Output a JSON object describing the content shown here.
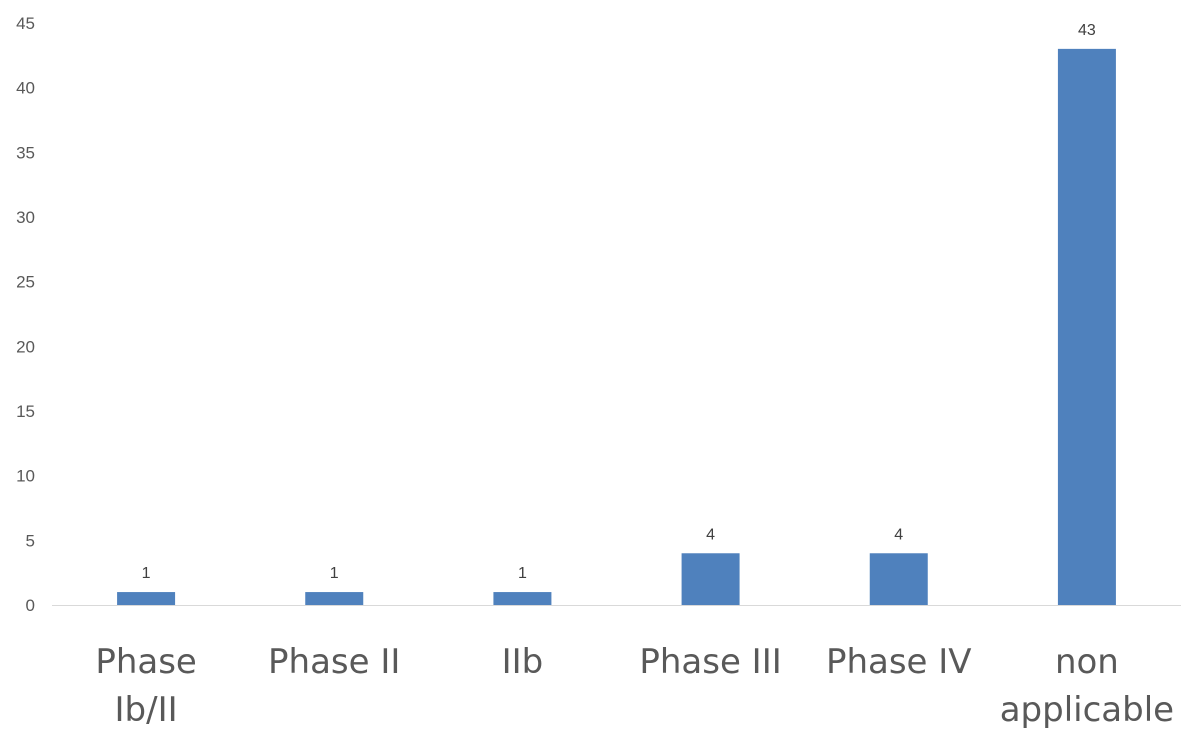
{
  "chart_data": {
    "type": "bar",
    "categories": [
      "Phase Ib/II",
      "Phase II",
      "IIb",
      "Phase III",
      "Phase IV",
      "non applicable"
    ],
    "values": [
      1,
      1,
      1,
      4,
      4,
      43
    ],
    "ylim": [
      0,
      45
    ],
    "yticks": [
      0,
      5,
      10,
      15,
      20,
      25,
      30,
      35,
      40,
      45
    ],
    "grid": false,
    "legend": "none",
    "data_labels": true,
    "bar_color": "#4F81BD",
    "axis_color": "#D9D9D9",
    "text_color": "#595959"
  }
}
